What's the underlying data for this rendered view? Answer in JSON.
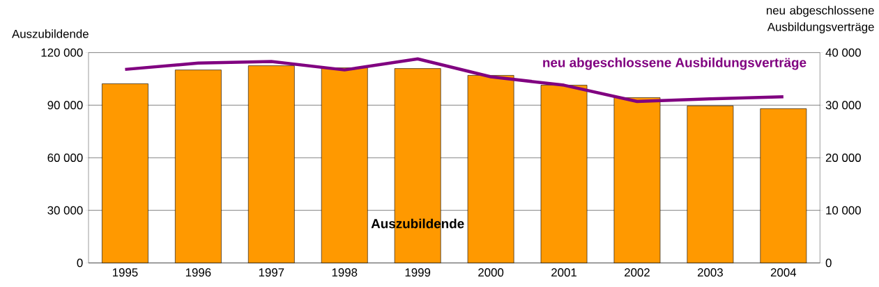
{
  "chart_data": {
    "type": "bar",
    "categories": [
      "1995",
      "1996",
      "1997",
      "1998",
      "1999",
      "2000",
      "2001",
      "2002",
      "2003",
      "2004"
    ],
    "ylabel": "Auszubildende",
    "y2label": "neu abgeschlossene Ausbildungsverträge",
    "ylim": [
      0,
      120000
    ],
    "yticks": [
      {
        "value": 0,
        "label": "0"
      },
      {
        "value": 30000,
        "label": "30 000"
      },
      {
        "value": 60000,
        "label": "60 000"
      },
      {
        "value": 90000,
        "label": "90 000"
      },
      {
        "value": 120000,
        "label": "120 000"
      }
    ],
    "y2lim": [
      0,
      40000
    ],
    "y2ticks": [
      {
        "value": 0,
        "label": "0"
      },
      {
        "value": 10000,
        "label": "10 000"
      },
      {
        "value": 20000,
        "label": "20 000"
      },
      {
        "value": 30000,
        "label": "30 000"
      },
      {
        "value": 40000,
        "label": "40 000"
      }
    ],
    "grid": "y",
    "series": [
      {
        "name": "Auszubildende",
        "color": "#ff9900",
        "values": [
          102200,
          110100,
          112500,
          111300,
          110900,
          107000,
          101400,
          94300,
          89600,
          88000
        ]
      },
      {
        "name": "neu abgeschlossene Ausbildungsverträge",
        "type": "line",
        "axis": "y2",
        "color": "#800080",
        "values": [
          36800,
          38000,
          38300,
          36700,
          38800,
          35400,
          33800,
          30700,
          31200,
          31600
        ]
      }
    ]
  }
}
